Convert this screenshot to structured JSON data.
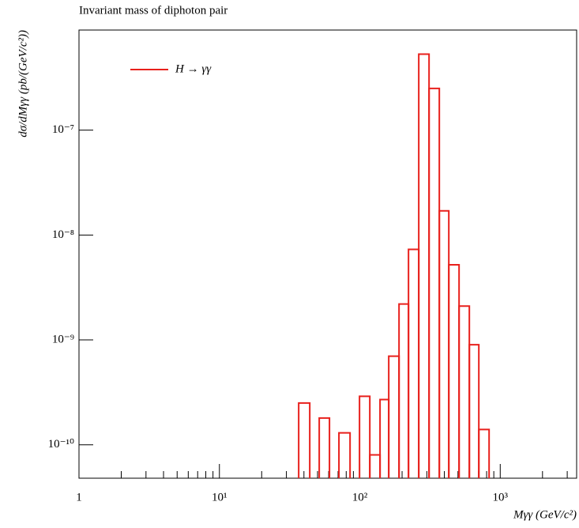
{
  "chart_data": {
    "type": "histogram",
    "title": "Invariant mass of diphoton pair",
    "xlabel": "Mγγ (GeV/c²)",
    "ylabel": "dσ/dMγγ (pb/(GeV/c²))",
    "xscale": "log",
    "yscale": "log",
    "xlim": [
      1,
      3500
    ],
    "ylim": [
      4.8e-11,
      9e-07
    ],
    "xticks": [
      1,
      {
        "value": 10,
        "label": "10¹"
      },
      {
        "value": 100,
        "label": "10²"
      },
      {
        "value": 1000,
        "label": "10³"
      }
    ],
    "xminorticks": [
      2,
      3,
      4,
      5,
      6,
      7,
      8,
      9,
      20,
      30,
      40,
      50,
      60,
      70,
      80,
      90,
      200,
      300,
      400,
      500,
      600,
      700,
      800,
      900,
      2000,
      3000
    ],
    "yticks": [
      {
        "value": 1e-10,
        "label": "10⁻¹⁰"
      },
      {
        "value": 1e-09,
        "label": "10⁻⁹"
      },
      {
        "value": 1e-08,
        "label": "10⁻⁸"
      },
      {
        "value": 1e-07,
        "label": "10⁻⁷"
      }
    ],
    "bins": [
      36.7,
      44.0,
      51.4,
      60.8,
      71.0,
      85.2,
      99.5,
      117.8,
      139.3,
      160.7,
      190.2,
      222.2,
      262.9,
      311.2,
      368.3,
      430.3,
      509.1,
      602.6,
      704.0,
      833.0
    ],
    "series": [
      {
        "name": "H → γγ",
        "color": "#e8201c",
        "values": [
          2.5e-10,
          null,
          1.8e-10,
          null,
          1.3e-10,
          null,
          2.9e-10,
          8e-11,
          2.7e-10,
          7e-10,
          2.2e-09,
          7.3e-09,
          5.3e-07,
          2.5e-07,
          1.7e-08,
          5.2e-09,
          2.1e-09,
          9e-10,
          1.4e-10
        ]
      }
    ],
    "legend": "upper left"
  }
}
